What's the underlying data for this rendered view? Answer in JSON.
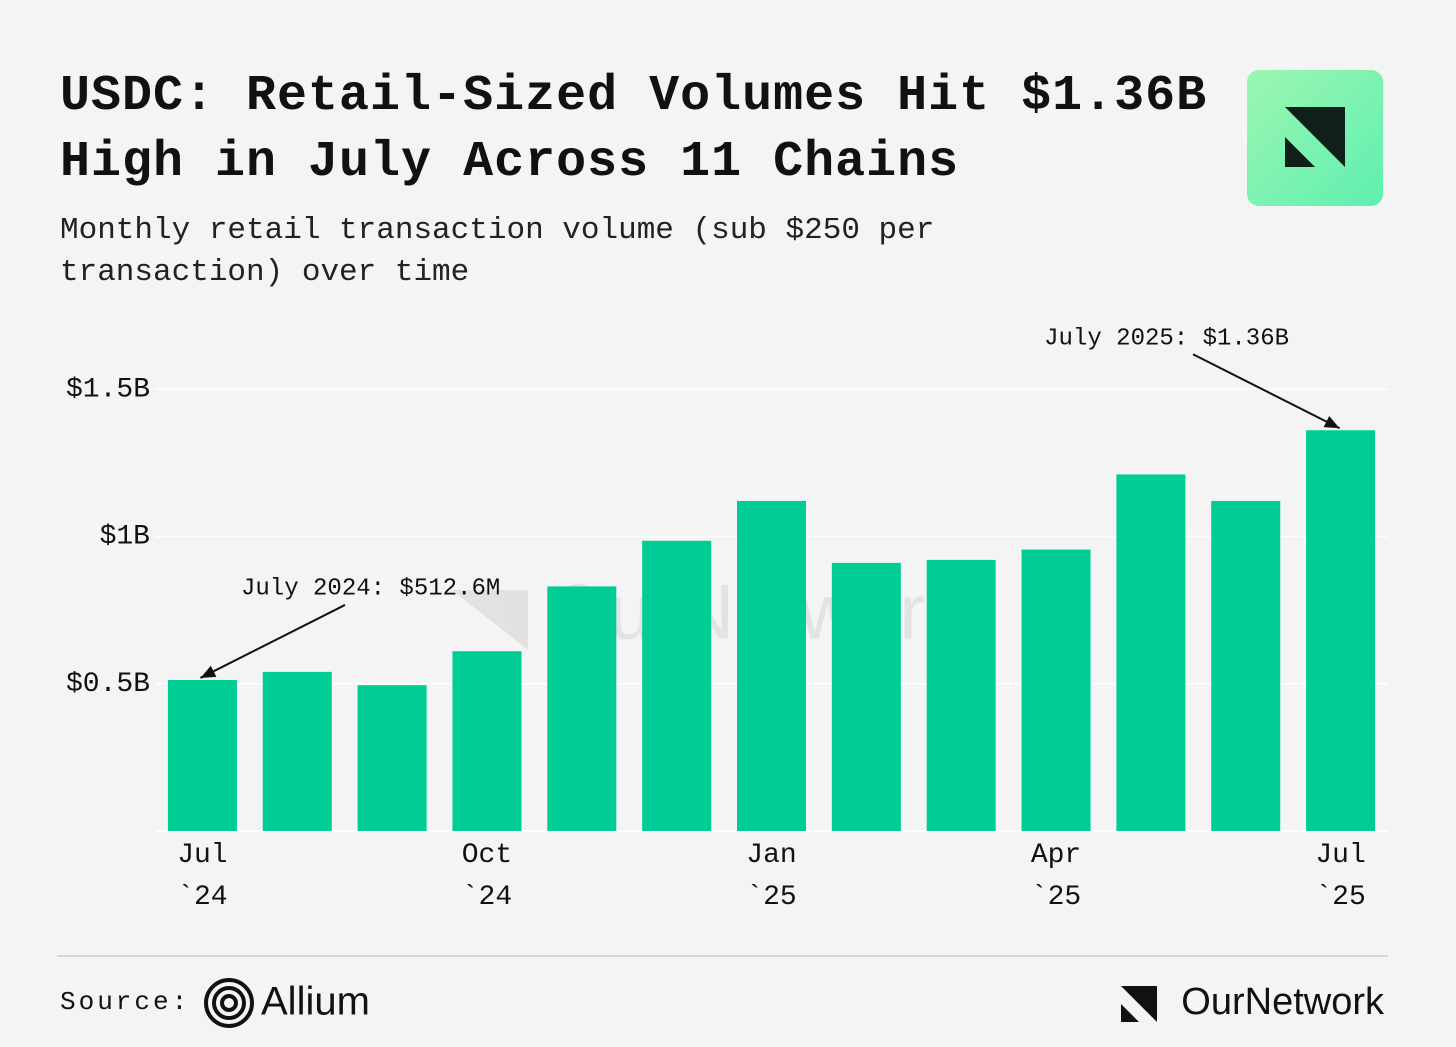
{
  "chart_data": {
    "type": "bar",
    "title": "USDC: Retail-Sized Volumes Hit $1.36B High in July Across 11 Chains",
    "subtitle": "Monthly retail transaction volume (sub $250 per transaction) over time",
    "categories": [
      "Jul `24",
      null,
      null,
      "Oct `24",
      null,
      null,
      "Jan `25",
      null,
      null,
      "Apr `25",
      null,
      null,
      "Jul `25"
    ],
    "values": [
      0.5126,
      0.54,
      0.495,
      0.61,
      0.83,
      0.985,
      1.12,
      0.91,
      0.92,
      0.955,
      1.21,
      1.12,
      1.36
    ],
    "color": "#00cc96",
    "ylim": [
      0,
      1.5
    ],
    "yticks": [
      {
        "value": 0.5,
        "label": "$0.5B"
      },
      {
        "value": 1,
        "label": "$1B"
      },
      {
        "value": 1.5,
        "label": "$1.5B"
      }
    ],
    "grid": true,
    "annotations": [
      "July 2024: $512.6M",
      "July 2025: $1.36B"
    ],
    "source_label": "Source:",
    "source": "Allium",
    "brand": "OurNetwork"
  }
}
